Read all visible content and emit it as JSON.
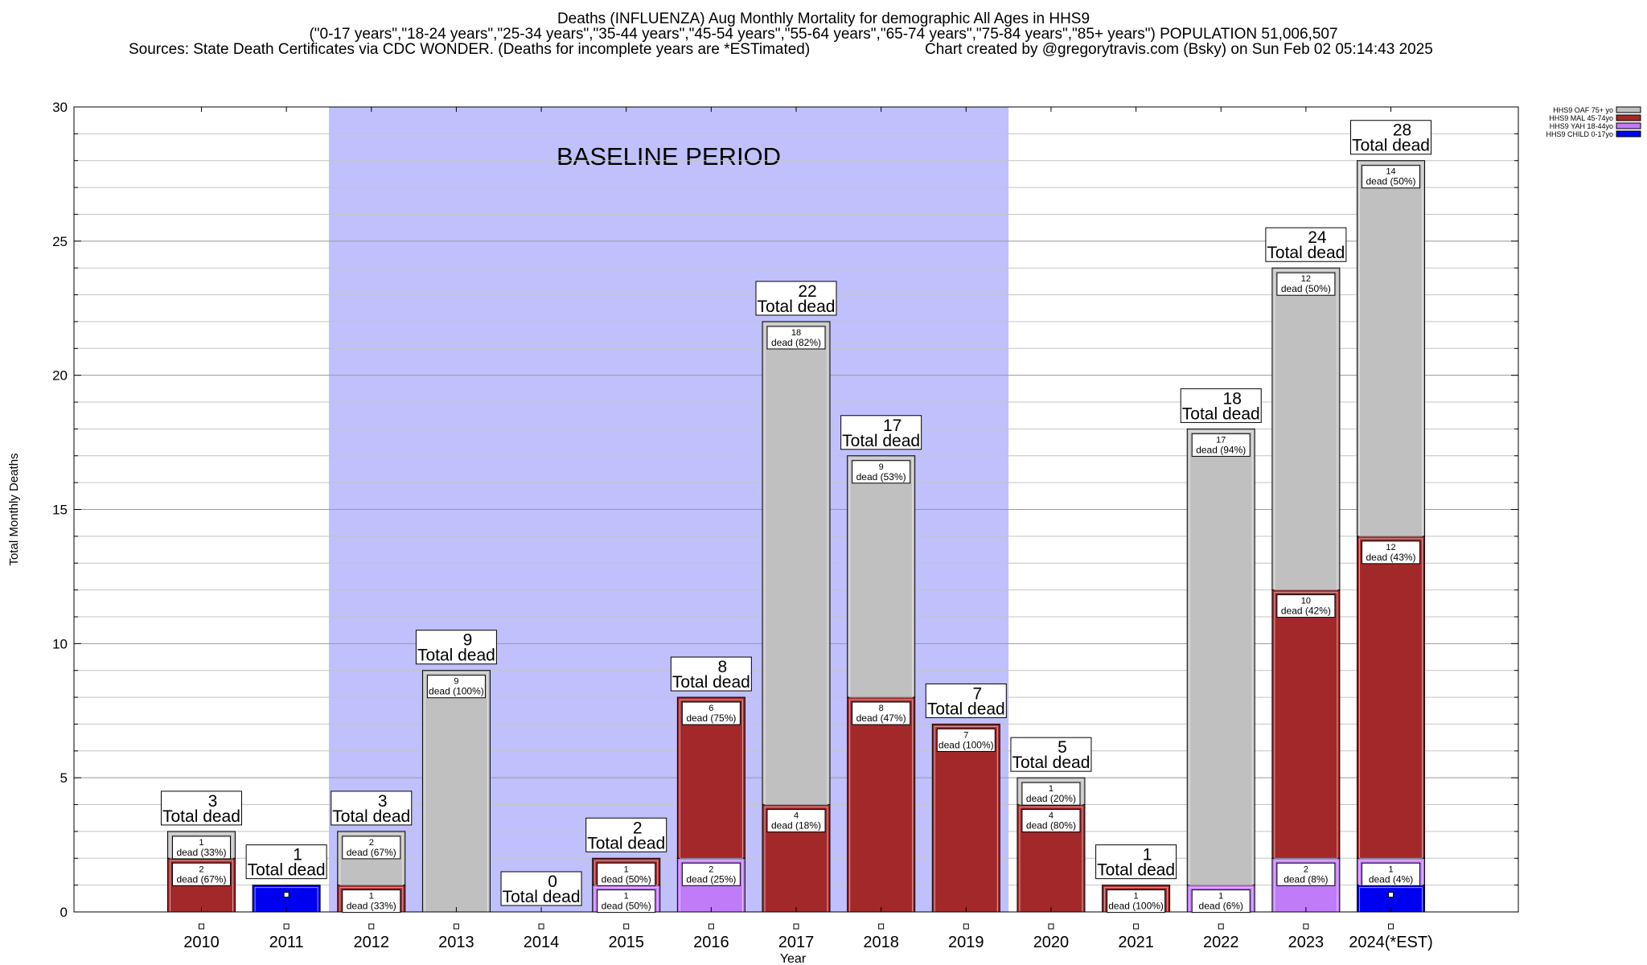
{
  "header": {
    "title_line1": "Deaths (INFLUENZA) Aug Monthly Mortality for demographic All Ages in HHS9",
    "title_line2": "(\"0-17 years\",\"18-24 years\",\"25-34 years\",\"35-44 years\",\"45-54 years\",\"55-64 years\",\"65-74 years\",\"75-84 years\",\"85+ years\") POPULATION 51,006,507",
    "sources": "Sources: State Death Certificates via CDC WONDER. (Deaths for incomplete years are *ESTimated)",
    "created": "Chart created by @gregorytravis.com (Bsky) on Sun Feb 02 05:14:43 2025"
  },
  "chart_data": {
    "type": "bar",
    "stacked": true,
    "xlabel": "Year",
    "ylabel": "Total Monthly Deaths",
    "ylim": [
      0,
      30
    ],
    "yticks": [
      0,
      5,
      10,
      15,
      20,
      25,
      30
    ],
    "grid": true,
    "legend_position": "top-right",
    "categories": [
      "2010",
      "2011",
      "2012",
      "2013",
      "2014",
      "2015",
      "2016",
      "2017",
      "2018",
      "2019",
      "2020",
      "2021",
      "2022",
      "2023",
      "2024(*EST)"
    ],
    "baseline": {
      "label": "BASELINE PERIOD",
      "from": "2012",
      "to": "2019",
      "color": "#c0c0fc"
    },
    "series": [
      {
        "name": "HHS9 CHILD 0-17yo",
        "color": "#0000f0",
        "values": [
          0,
          1,
          0,
          0,
          0,
          0,
          0,
          0,
          0,
          0,
          0,
          0,
          0,
          0,
          1
        ],
        "labels": [
          "",
          "",
          "",
          "",
          "",
          "",
          "",
          "",
          "",
          "",
          "",
          "",
          "",
          "",
          ""
        ]
      },
      {
        "name": "HHS9 YAH 18-44yo",
        "color": "#c07cf8",
        "values": [
          0,
          0,
          0,
          0,
          0,
          1,
          2,
          0,
          0,
          0,
          0,
          0,
          1,
          2,
          1
        ],
        "labels": [
          "",
          "",
          "",
          "",
          "",
          "dead (50%)",
          "dead (25%)",
          "",
          "",
          "",
          "",
          "",
          "dead (6%)",
          "dead (8%)",
          "dead (4%)"
        ]
      },
      {
        "name": "HHS9 MAL 45-74yo",
        "color": "#a3282a",
        "values": [
          2,
          0,
          1,
          0,
          0,
          1,
          6,
          4,
          8,
          7,
          4,
          1,
          0,
          10,
          12
        ],
        "labels": [
          "dead (67%)",
          "",
          "dead (33%)",
          "",
          "",
          "dead (50%)",
          "dead (75%)",
          "dead (18%)",
          "dead (47%)",
          "dead (100%)",
          "dead (80%)",
          "dead (100%)",
          "",
          "dead (42%)",
          "dead (43%)"
        ]
      },
      {
        "name": "HHS9 OAF 75+ yo",
        "color": "#c0c0c0",
        "values": [
          1,
          0,
          2,
          9,
          0,
          0,
          0,
          18,
          9,
          0,
          1,
          0,
          17,
          12,
          14
        ],
        "labels": [
          "dead (33%)",
          "",
          "dead (67%)",
          "dead (100%)",
          "",
          "",
          "",
          "dead (82%)",
          "dead (53%)",
          "",
          "dead (20%)",
          "",
          "dead (94%)",
          "dead (50%)",
          "dead (50%)"
        ]
      }
    ],
    "totals": [
      3,
      1,
      3,
      9,
      0,
      2,
      8,
      22,
      17,
      7,
      5,
      1,
      18,
      24,
      28
    ],
    "total_label": "Total dead"
  }
}
